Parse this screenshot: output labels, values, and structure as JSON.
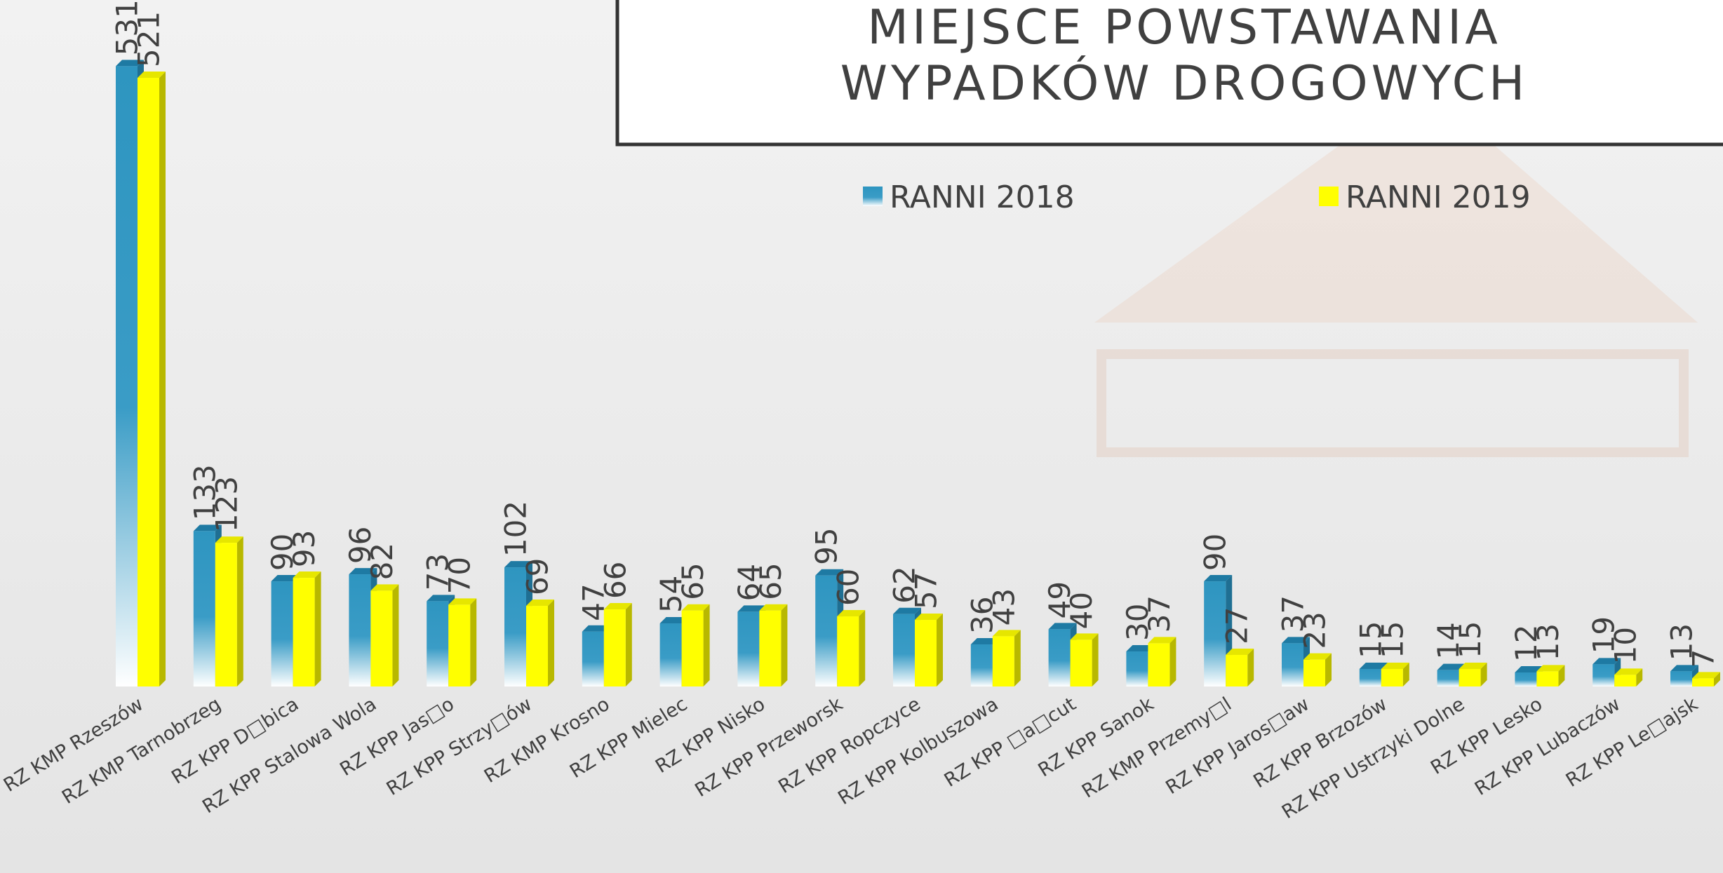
{
  "chart_data": {
    "type": "bar",
    "title": [
      "MIEJSCE POWSTAWANIA",
      "WYPADKÓW DROGOWYCH"
    ],
    "categories": [
      "RZ KMP Rzeszów",
      "RZ KMP Tarnobrzeg",
      "RZ KPP D□bica",
      "RZ KPP Stalowa Wola",
      "RZ KPP Jas□o",
      "RZ KPP Strzy□ów",
      "RZ KMP Krosno",
      "RZ KPP Mielec",
      "RZ KPP Nisko",
      "RZ KPP Przeworsk",
      "RZ KPP Ropczyce",
      "RZ KPP Kolbuszowa",
      "RZ KPP □a□cut",
      "RZ KPP Sanok",
      "RZ KMP Przemy□l",
      "RZ KPP Jaros□aw",
      "RZ KPP Brzozów",
      "RZ KPP Ustrzyki Dolne",
      "RZ KPP Lesko",
      "RZ KPP Lubaczów",
      "RZ KPP Le□ajsk"
    ],
    "series": [
      {
        "name": "RANNI 2018",
        "color": "#2e95c0",
        "values": [
          531,
          133,
          90,
          96,
          73,
          102,
          47,
          54,
          64,
          95,
          62,
          36,
          49,
          30,
          90,
          37,
          15,
          14,
          12,
          19,
          13
        ]
      },
      {
        "name": "RANNI 2019",
        "color": "#ffff00",
        "values": [
          521,
          123,
          93,
          82,
          70,
          69,
          66,
          65,
          65,
          60,
          57,
          43,
          40,
          37,
          27,
          23,
          15,
          15,
          13,
          10,
          7
        ]
      }
    ]
  }
}
